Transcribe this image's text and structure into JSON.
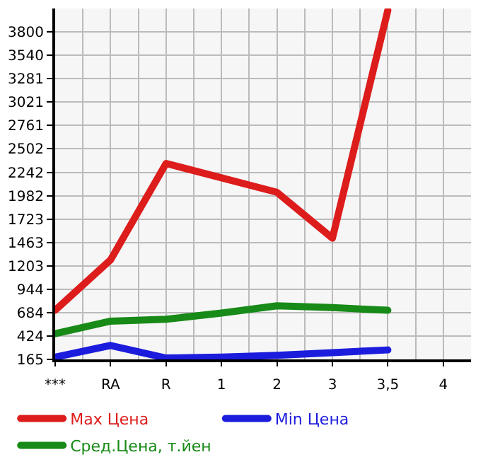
{
  "chart_data": {
    "type": "line",
    "categories": [
      "***",
      "RA",
      "R",
      "1",
      "2",
      "3",
      "3,5",
      "4"
    ],
    "series": [
      {
        "name": "Max Цена",
        "color": "#dd1c1c",
        "values": [
          710,
          1270,
          2340,
          2180,
          2020,
          1510,
          4040,
          null
        ]
      },
      {
        "name": "Min Цена",
        "color": "#1c1cdd",
        "values": [
          190,
          320,
          180,
          190,
          210,
          240,
          270,
          null
        ]
      },
      {
        "name": "Сред.Цена, т.йен",
        "color": "#178a17",
        "values": [
          450,
          590,
          610,
          680,
          760,
          740,
          710,
          null
        ]
      }
    ],
    "ylim": [
      165,
      4060
    ],
    "yticks": [
      165,
      424,
      684,
      944,
      1203,
      1463,
      1723,
      1982,
      2242,
      2502,
      2761,
      3021,
      3281,
      3540,
      3800
    ],
    "grid": true,
    "legend": "bottom",
    "marker": "none",
    "line_style": "solid"
  }
}
